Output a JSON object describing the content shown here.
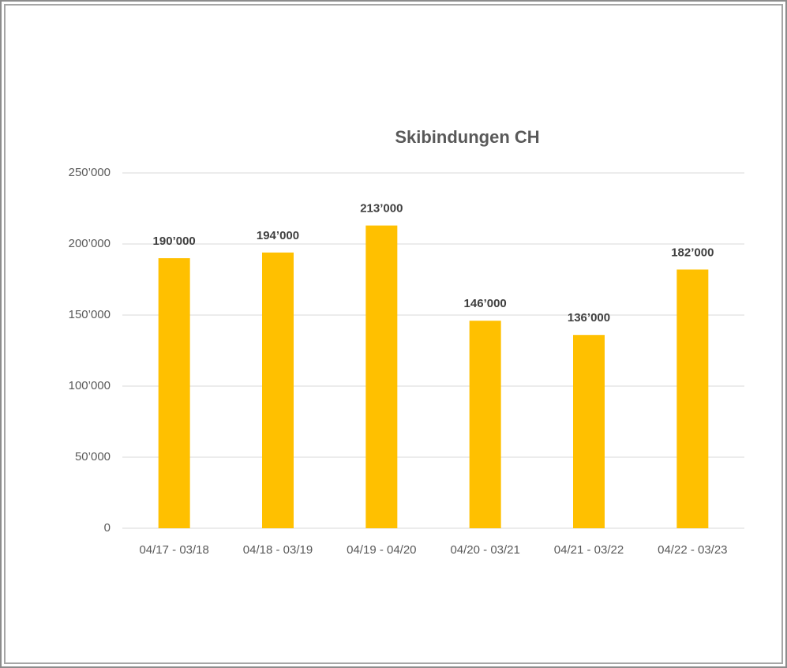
{
  "chart_data": {
    "type": "bar",
    "title": "Skibindungen CH",
    "categories": [
      "04/17 - 03/18",
      "04/18 - 03/19",
      "04/19 - 04/20",
      "04/20 - 03/21",
      "04/21 - 03/22",
      "04/22 - 03/23"
    ],
    "values": [
      190000,
      194000,
      213000,
      146000,
      136000,
      182000
    ],
    "value_labels": [
      "190’000",
      "194’000",
      "213’000",
      "146’000",
      "136’000",
      "182’000"
    ],
    "color": "#ffc000",
    "ylim": [
      0,
      250000
    ],
    "yticks": [
      0,
      {
        "value": 50000,
        "label": "50’000"
      },
      {
        "value": 100000,
        "label": "100’000"
      },
      {
        "value": 150000,
        "label": "150’000"
      },
      {
        "value": 200000,
        "label": "200’000"
      },
      {
        "value": 250000,
        "label": "250’000"
      }
    ],
    "grid": true
  }
}
